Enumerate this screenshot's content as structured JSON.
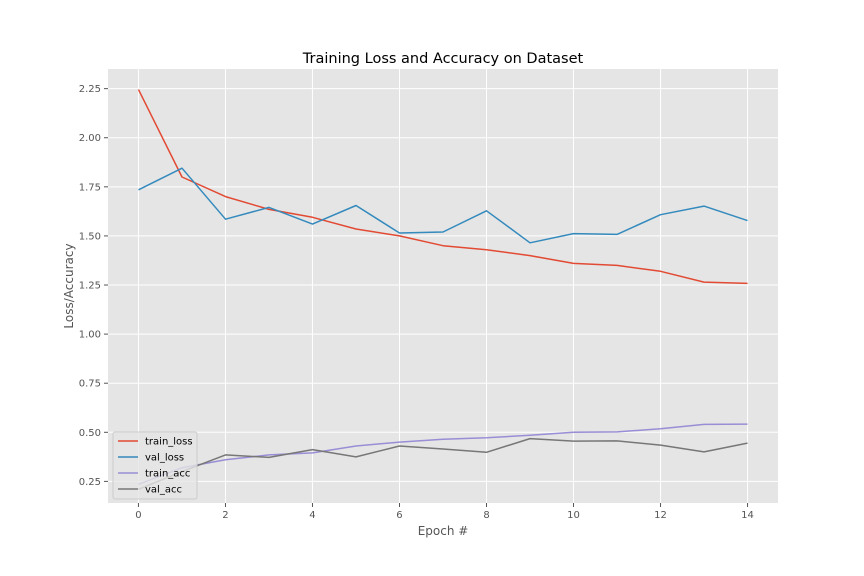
{
  "chart_data": {
    "type": "line",
    "title": "Training Loss and Accuracy on Dataset",
    "xlabel": "Epoch #",
    "ylabel": "Loss/Accuracy",
    "xlim": [
      -0.7,
      14.7
    ],
    "ylim": [
      0.14,
      2.35
    ],
    "xticks": [
      0,
      2,
      4,
      6,
      8,
      10,
      12,
      14
    ],
    "yticks": [
      0.25,
      0.5,
      0.75,
      1.0,
      1.25,
      1.5,
      1.75,
      2.0,
      2.25
    ],
    "ytick_labels": [
      "0.25",
      "0.50",
      "0.75",
      "1.00",
      "1.25",
      "1.50",
      "1.75",
      "2.00",
      "2.25"
    ],
    "grid": true,
    "legend_position": "lower-left",
    "x": [
      0,
      1,
      2,
      3,
      4,
      5,
      6,
      7,
      8,
      9,
      10,
      11,
      12,
      13,
      14
    ],
    "series": [
      {
        "name": "train_loss",
        "color": "#E24A33",
        "values": [
          2.245,
          1.8,
          1.7,
          1.635,
          1.595,
          1.535,
          1.5,
          1.45,
          1.43,
          1.4,
          1.36,
          1.35,
          1.32,
          1.265,
          1.258
        ]
      },
      {
        "name": "val_loss",
        "color": "#348ABD",
        "values": [
          1.735,
          1.845,
          1.585,
          1.645,
          1.56,
          1.655,
          1.515,
          1.52,
          1.628,
          1.465,
          1.512,
          1.508,
          1.608,
          1.652,
          1.578
        ]
      },
      {
        "name": "train_acc",
        "color": "#988ED5",
        "values": [
          0.235,
          0.32,
          0.36,
          0.385,
          0.395,
          0.43,
          0.45,
          0.465,
          0.472,
          0.485,
          0.5,
          0.502,
          0.518,
          0.54,
          0.542
        ]
      },
      {
        "name": "val_acc",
        "color": "#777777",
        "values": [
          0.21,
          0.3,
          0.385,
          0.372,
          0.412,
          0.375,
          0.43,
          0.415,
          0.398,
          0.468,
          0.455,
          0.456,
          0.435,
          0.4,
          0.445
        ]
      }
    ]
  }
}
